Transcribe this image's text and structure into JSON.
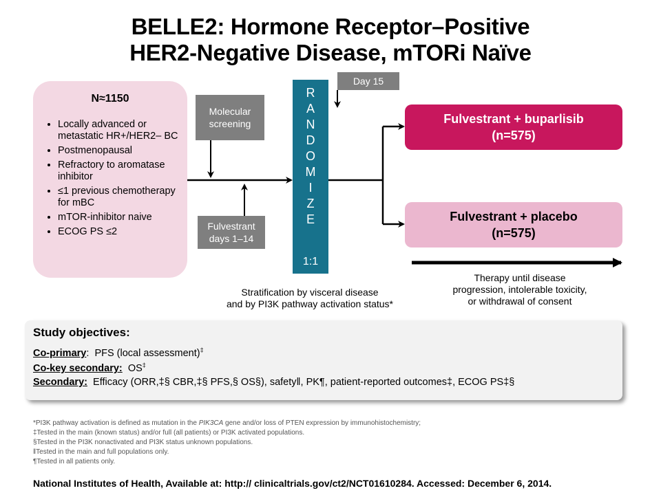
{
  "title": {
    "line1": "BELLE2: Hormone Receptor–Positive",
    "line2": "HER2-Negative Disease, mTORi Naïve"
  },
  "population": {
    "n": "N≈1150",
    "criteria": [
      "Locally advanced or metastatic HR+/HER2– BC",
      "Postmenopausal",
      "Refractory to aromatase inhibitor",
      "≤1 previous chemotherapy for mBC",
      "mTOR-inhibitor naive",
      "ECOG PS ≤2"
    ]
  },
  "steps": {
    "molecular": "Molecular screening",
    "fulvestrant_lead": "Fulvestrant days 1–14",
    "day15": "Day 15"
  },
  "randomize": {
    "letters": [
      "R",
      "A",
      "N",
      "D",
      "O",
      "M",
      "I",
      "Z",
      "E"
    ],
    "ratio": "1:1"
  },
  "arms": [
    {
      "name": "Fulvestrant + buparlisib",
      "n": "(n=575)",
      "color": "#c8175d"
    },
    {
      "name": "Fulvestrant + placebo",
      "n": "(n=575)",
      "color": "#ebb7cf"
    }
  ],
  "stratification": {
    "line1": "Stratification by visceral disease",
    "line2": "and by PI3K pathway activation status*"
  },
  "therapy_note": {
    "line1": "Therapy until disease",
    "line2": "progression, intolerable toxicity,",
    "line3": "or withdrawal of consent"
  },
  "objectives": {
    "heading": "Study objectives:",
    "coprimary_label": "Co-primary",
    "coprimary_text": "PFS (local assessment)",
    "cokey_label": "Co-key secondary:",
    "cokey_text": "OS",
    "secondary_label": "Secondary:",
    "secondary_text": "Efficacy (ORR,‡§ CBR,‡§ PFS,§ OS§), safety‖, PK¶, patient-reported outcomes‡, ECOG PS‡§"
  },
  "footnotes": {
    "f1_a": "*PI3K pathway activation is defined as mutation in the ",
    "f1_gene": "PIK3CA",
    "f1_b": " gene and/or loss of PTEN expression by immunohistochemistry;",
    "f2": "‡Tested in the main (known status) and/or full (all patients) or PI3K activated populations.",
    "f3": "§Tested in the PI3K nonactivated and PI3K status unknown populations.",
    "f4": "‖Tested in the main and full populations only.",
    "f5": "¶Tested in all patients only."
  },
  "source": "National Institutes of Health, Available at: http:// clinicaltrials.gov/ct2/NCT01610284. Accessed: December 6, 2014.",
  "colors": {
    "randomize": "#17728c",
    "arm_active": "#c8175d",
    "arm_placebo": "#ebb7cf",
    "population": "#f3d8e3",
    "step_box": "#7f7f7f"
  }
}
